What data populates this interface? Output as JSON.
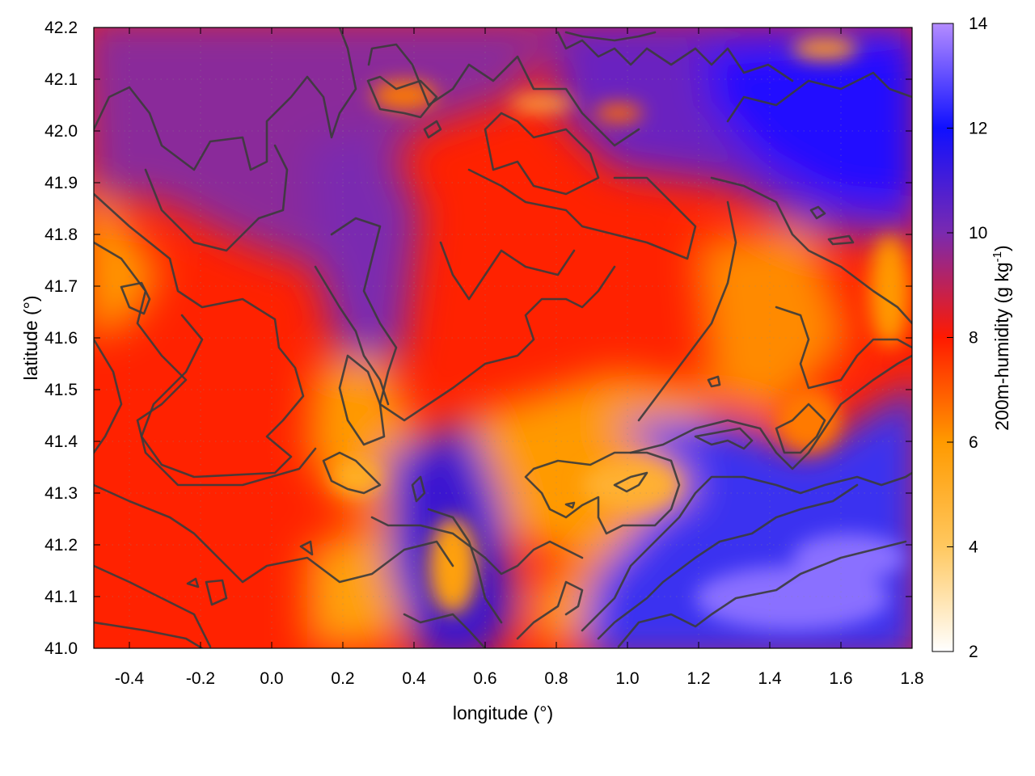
{
  "chart_data": {
    "type": "heatmap",
    "title": "",
    "xlabel": "longitude (°)",
    "ylabel": "latitude (°)",
    "colorbar_label_main": "200m-humidity (g kg",
    "colorbar_label_exp": "-1",
    "colorbar_label_close": ")",
    "xlim": [
      -0.5,
      1.8
    ],
    "ylim": [
      41.0,
      42.2
    ],
    "x_ticks": [
      "-0.4",
      "-0.2",
      "0.0",
      "0.2",
      "0.4",
      "0.6",
      "0.8",
      "1.0",
      "1.2",
      "1.4",
      "1.6",
      "1.8"
    ],
    "y_ticks": [
      "41.0",
      "41.1",
      "41.2",
      "41.3",
      "41.4",
      "41.5",
      "41.6",
      "41.7",
      "41.8",
      "41.9",
      "42.0",
      "42.1",
      "42.2"
    ],
    "color_range": [
      2,
      14
    ],
    "colorbar_ticks": [
      "2",
      "4",
      "6",
      "8",
      "10",
      "12",
      "14"
    ],
    "colormap": [
      {
        "value": 2,
        "color": "#ffffff"
      },
      {
        "value": 4,
        "color": "#ffc860"
      },
      {
        "value": 6,
        "color": "#ff9a00"
      },
      {
        "value": 8,
        "color": "#ff1a00"
      },
      {
        "value": 10,
        "color": "#7a2ab0"
      },
      {
        "value": 12,
        "color": "#1010ff"
      },
      {
        "value": 14,
        "color": "#b48cff"
      }
    ],
    "grid": true,
    "legend": "colorbar-right",
    "field_description_points": [
      {
        "lon": -0.45,
        "lat": 42.15,
        "humidity": 9.2
      },
      {
        "lon": 0.0,
        "lat": 41.95,
        "humidity": 8.8
      },
      {
        "lon": -0.45,
        "lat": 41.8,
        "humidity": 5.5
      },
      {
        "lon": -0.2,
        "lat": 41.45,
        "humidity": 7.8
      },
      {
        "lon": 0.1,
        "lat": 41.15,
        "humidity": 7.2
      },
      {
        "lon": 0.25,
        "lat": 41.05,
        "humidity": 5.0
      },
      {
        "lon": 0.45,
        "lat": 41.25,
        "humidity": 11.0
      },
      {
        "lon": 0.55,
        "lat": 41.05,
        "humidity": 11.5
      },
      {
        "lon": 0.8,
        "lat": 41.3,
        "humidity": 5.6
      },
      {
        "lon": 0.75,
        "lat": 41.45,
        "humidity": 5.8
      },
      {
        "lon": 0.6,
        "lat": 41.65,
        "humidity": 8.6
      },
      {
        "lon": 0.9,
        "lat": 41.8,
        "humidity": 8.4
      },
      {
        "lon": 1.3,
        "lat": 41.7,
        "humidity": 6.8
      },
      {
        "lon": 1.5,
        "lat": 41.95,
        "humidity": 11.8
      },
      {
        "lon": 1.7,
        "lat": 42.05,
        "humidity": 11.6
      },
      {
        "lon": 1.5,
        "lat": 41.15,
        "humidity": 12.4
      },
      {
        "lon": 1.7,
        "lat": 41.1,
        "humidity": 13.0
      },
      {
        "lon": 1.1,
        "lat": 41.1,
        "humidity": 12.0
      },
      {
        "lon": 0.85,
        "lat": 42.1,
        "humidity": 10.5
      },
      {
        "lon": 0.35,
        "lat": 41.8,
        "humidity": 9.5
      }
    ]
  }
}
